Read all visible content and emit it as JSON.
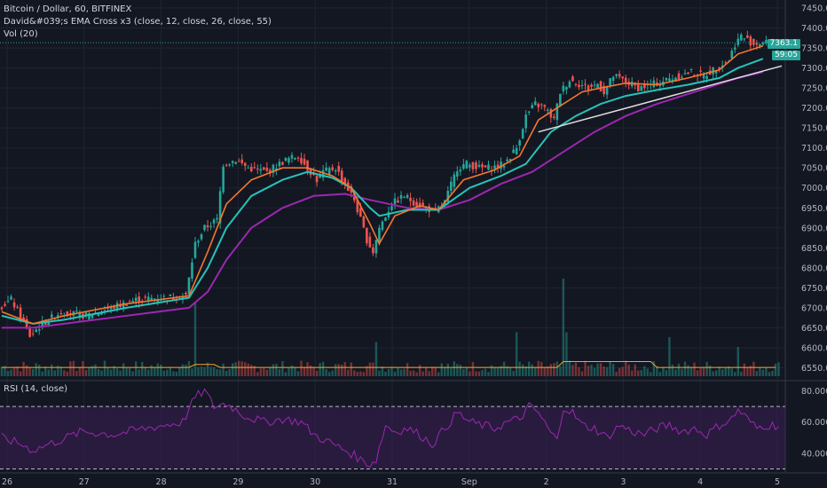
{
  "header": {
    "title": "Bitcoin / Dollar, 60, BITFINEX",
    "indicator": "David&#039;s EMA Cross x3 (close, 12, close, 26, close, 55)",
    "volume": "Vol (20)"
  },
  "rsi_panel": {
    "label": "RSI (14, close)"
  },
  "price_badges": {
    "last": "7363.1",
    "countdown": "59:05"
  },
  "colors": {
    "up": "#26a69a",
    "down": "#ef5350",
    "ema12": "#f5772d",
    "ema26": "#27c3b8",
    "ema55": "#9c27b0",
    "trendline": "#e0e0e0",
    "rsi": "#9c27b0",
    "rsi_band": "#3c1f55"
  },
  "chart_data": [
    {
      "type": "candlestick",
      "title": "Bitcoin / Dollar, 60, BITFINEX",
      "x_ticks": [
        "26",
        "27",
        "28",
        "29",
        "30",
        "31",
        "Sep",
        "2",
        "3",
        "4",
        "5"
      ],
      "y_ticks": [
        7450,
        7400,
        7350,
        7300,
        7250,
        7200,
        7150,
        7100,
        7050,
        7000,
        6950,
        6900,
        6850,
        6800,
        6750,
        6700,
        6650,
        6600,
        6550
      ],
      "ylim": [
        6520,
        7470
      ],
      "last_price": 7363.1,
      "close_path": [
        [
          0,
          6700
        ],
        [
          4,
          6720
        ],
        [
          7,
          6680
        ],
        [
          10,
          6630
        ],
        [
          14,
          6660
        ],
        [
          20,
          6690
        ],
        [
          28,
          6680
        ],
        [
          36,
          6700
        ],
        [
          44,
          6720
        ],
        [
          52,
          6725
        ],
        [
          60,
          6730
        ],
        [
          63,
          6860
        ],
        [
          66,
          6900
        ],
        [
          70,
          6920
        ],
        [
          72,
          7060
        ],
        [
          76,
          7070
        ],
        [
          80,
          7050
        ],
        [
          86,
          7040
        ],
        [
          92,
          7070
        ],
        [
          96,
          7080
        ],
        [
          98,
          7060
        ],
        [
          102,
          7020
        ],
        [
          104,
          7040
        ],
        [
          108,
          7050
        ],
        [
          111,
          7010
        ],
        [
          114,
          6970
        ],
        [
          116,
          6920
        ],
        [
          118,
          6870
        ],
        [
          120,
          6840
        ],
        [
          122,
          6900
        ],
        [
          126,
          6960
        ],
        [
          130,
          6980
        ],
        [
          134,
          6960
        ],
        [
          137,
          6950
        ],
        [
          140,
          6940
        ],
        [
          143,
          6965
        ],
        [
          147,
          7050
        ],
        [
          150,
          7060
        ],
        [
          154,
          7050
        ],
        [
          158,
          7050
        ],
        [
          162,
          7060
        ],
        [
          166,
          7100
        ],
        [
          169,
          7180
        ],
        [
          172,
          7210
        ],
        [
          175,
          7200
        ],
        [
          178,
          7170
        ],
        [
          180,
          7240
        ],
        [
          183,
          7270
        ],
        [
          186,
          7260
        ],
        [
          189,
          7250
        ],
        [
          192,
          7260
        ],
        [
          194,
          7240
        ],
        [
          197,
          7280
        ],
        [
          200,
          7270
        ],
        [
          205,
          7250
        ],
        [
          210,
          7260
        ],
        [
          214,
          7270
        ],
        [
          218,
          7280
        ],
        [
          222,
          7290
        ],
        [
          226,
          7280
        ],
        [
          230,
          7300
        ],
        [
          234,
          7320
        ],
        [
          236,
          7360
        ],
        [
          238,
          7380
        ],
        [
          240,
          7370
        ],
        [
          242,
          7360
        ],
        [
          244,
          7363
        ]
      ],
      "ema12_path": [
        [
          0,
          6690
        ],
        [
          10,
          6660
        ],
        [
          20,
          6680
        ],
        [
          40,
          6710
        ],
        [
          60,
          6730
        ],
        [
          66,
          6840
        ],
        [
          72,
          6960
        ],
        [
          80,
          7020
        ],
        [
          90,
          7050
        ],
        [
          98,
          7050
        ],
        [
          106,
          7030
        ],
        [
          112,
          7000
        ],
        [
          118,
          6910
        ],
        [
          121,
          6860
        ],
        [
          126,
          6930
        ],
        [
          134,
          6955
        ],
        [
          140,
          6945
        ],
        [
          148,
          7020
        ],
        [
          158,
          7045
        ],
        [
          166,
          7080
        ],
        [
          172,
          7170
        ],
        [
          180,
          7210
        ],
        [
          186,
          7240
        ],
        [
          192,
          7250
        ],
        [
          200,
          7262
        ],
        [
          210,
          7258
        ],
        [
          220,
          7275
        ],
        [
          230,
          7295
        ],
        [
          236,
          7335
        ],
        [
          244,
          7355
        ]
      ],
      "ema26_path": [
        [
          0,
          6680
        ],
        [
          10,
          6660
        ],
        [
          20,
          6670
        ],
        [
          40,
          6700
        ],
        [
          60,
          6725
        ],
        [
          66,
          6800
        ],
        [
          72,
          6900
        ],
        [
          80,
          6980
        ],
        [
          90,
          7020
        ],
        [
          98,
          7040
        ],
        [
          106,
          7025
        ],
        [
          112,
          7000
        ],
        [
          118,
          6950
        ],
        [
          121,
          6930
        ],
        [
          130,
          6945
        ],
        [
          140,
          6945
        ],
        [
          150,
          7000
        ],
        [
          160,
          7030
        ],
        [
          168,
          7060
        ],
        [
          176,
          7140
        ],
        [
          184,
          7180
        ],
        [
          192,
          7210
        ],
        [
          200,
          7230
        ],
        [
          210,
          7245
        ],
        [
          220,
          7258
        ],
        [
          230,
          7275
        ],
        [
          236,
          7300
        ],
        [
          244,
          7323
        ]
      ],
      "ema55_path": [
        [
          0,
          6650
        ],
        [
          10,
          6650
        ],
        [
          20,
          6660
        ],
        [
          40,
          6680
        ],
        [
          60,
          6700
        ],
        [
          66,
          6740
        ],
        [
          72,
          6820
        ],
        [
          80,
          6900
        ],
        [
          90,
          6950
        ],
        [
          100,
          6980
        ],
        [
          110,
          6985
        ],
        [
          118,
          6970
        ],
        [
          130,
          6950
        ],
        [
          140,
          6945
        ],
        [
          150,
          6970
        ],
        [
          160,
          7010
        ],
        [
          170,
          7040
        ],
        [
          180,
          7090
        ],
        [
          190,
          7140
        ],
        [
          200,
          7180
        ],
        [
          210,
          7210
        ],
        [
          220,
          7235
        ],
        [
          230,
          7260
        ],
        [
          236,
          7275
        ],
        [
          244,
          7290
        ]
      ],
      "trendline": [
        [
          172,
          7140
        ],
        [
          250,
          7305
        ]
      ],
      "volume_spikes": [
        [
          62,
          0.75
        ],
        [
          180,
          1.0
        ],
        [
          181,
          0.45
        ],
        [
          165,
          0.45
        ],
        [
          62,
          0.75
        ],
        [
          120,
          0.35
        ],
        [
          214,
          0.4
        ],
        [
          236,
          0.3
        ]
      ]
    },
    {
      "type": "line",
      "title": "RSI (14, close)",
      "y_ticks": [
        80,
        60,
        40
      ],
      "ylim": [
        28,
        86
      ],
      "band": [
        30,
        70
      ],
      "midline": 50,
      "rsi_path": [
        [
          0,
          50
        ],
        [
          6,
          46
        ],
        [
          10,
          42
        ],
        [
          18,
          48
        ],
        [
          26,
          54
        ],
        [
          36,
          52
        ],
        [
          46,
          56
        ],
        [
          52,
          58
        ],
        [
          58,
          60
        ],
        [
          62,
          76
        ],
        [
          65,
          80
        ],
        [
          68,
          70
        ],
        [
          72,
          72
        ],
        [
          78,
          64
        ],
        [
          84,
          60
        ],
        [
          90,
          62
        ],
        [
          96,
          60
        ],
        [
          100,
          52
        ],
        [
          104,
          48
        ],
        [
          108,
          44
        ],
        [
          112,
          40
        ],
        [
          115,
          36
        ],
        [
          118,
          33
        ],
        [
          120,
          36
        ],
        [
          123,
          58
        ],
        [
          126,
          54
        ],
        [
          130,
          56
        ],
        [
          134,
          52
        ],
        [
          138,
          46
        ],
        [
          142,
          56
        ],
        [
          146,
          66
        ],
        [
          150,
          60
        ],
        [
          154,
          58
        ],
        [
          158,
          56
        ],
        [
          162,
          60
        ],
        [
          166,
          62
        ],
        [
          169,
          70
        ],
        [
          172,
          66
        ],
        [
          175,
          56
        ],
        [
          178,
          48
        ],
        [
          180,
          70
        ],
        [
          183,
          66
        ],
        [
          186,
          58
        ],
        [
          190,
          56
        ],
        [
          194,
          50
        ],
        [
          198,
          58
        ],
        [
          202,
          54
        ],
        [
          206,
          52
        ],
        [
          210,
          56
        ],
        [
          214,
          58
        ],
        [
          218,
          54
        ],
        [
          222,
          56
        ],
        [
          226,
          52
        ],
        [
          230,
          58
        ],
        [
          234,
          62
        ],
        [
          236,
          68
        ],
        [
          238,
          64
        ],
        [
          240,
          60
        ],
        [
          242,
          56
        ],
        [
          244,
          58
        ]
      ]
    }
  ]
}
